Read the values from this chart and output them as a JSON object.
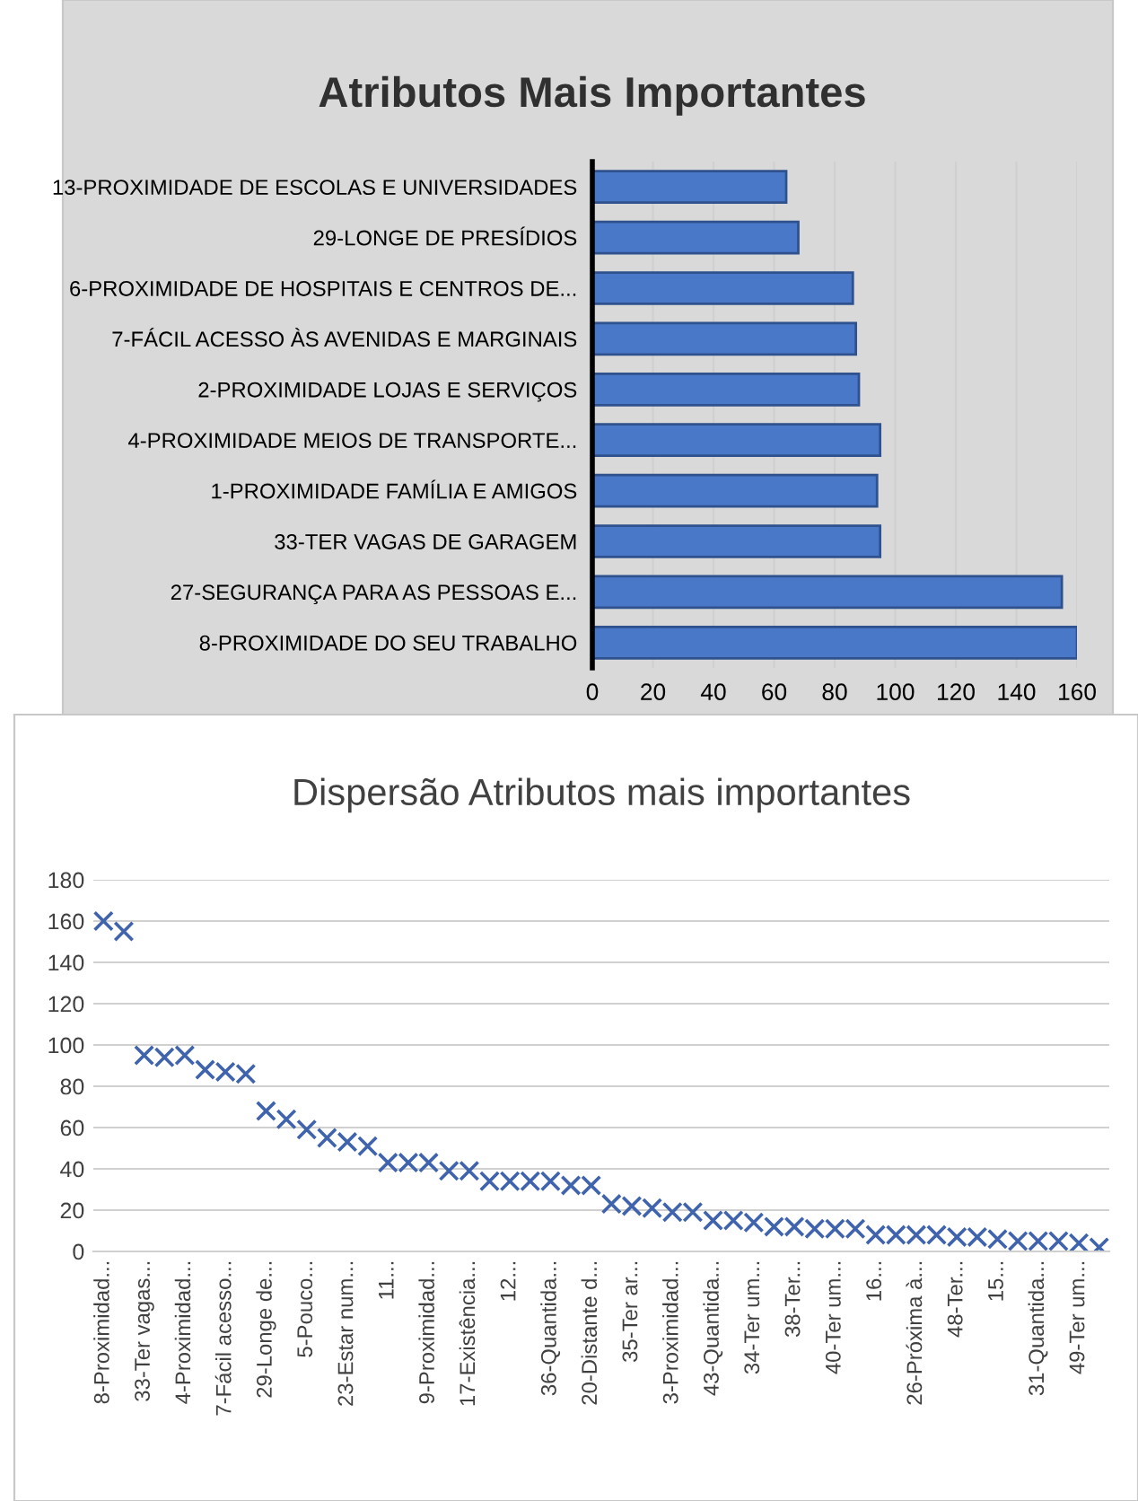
{
  "chart_data": [
    {
      "type": "bar",
      "orientation": "horizontal",
      "title": "Atributos Mais Importantes",
      "categories": [
        "13-PROXIMIDADE DE ESCOLAS E UNIVERSIDADES",
        "29-LONGE DE PRESÍDIOS",
        "6-PROXIMIDADE DE HOSPITAIS E CENTROS DE...",
        "7-FÁCIL ACESSO ÀS AVENIDAS E MARGINAIS",
        "2-PROXIMIDADE LOJAS E SERVIÇOS",
        "4-PROXIMIDADE MEIOS DE TRANSPORTE...",
        "1-PROXIMIDADE FAMÍLIA E AMIGOS",
        "33-TER VAGAS DE GARAGEM",
        "27-SEGURANÇA PARA AS PESSOAS E...",
        "8-PROXIMIDADE DO SEU TRABALHO"
      ],
      "values": [
        64,
        68,
        86,
        87,
        88,
        95,
        94,
        95,
        155,
        160
      ],
      "color": "#4a78c8",
      "xlim": [
        0,
        160
      ],
      "xticks": [
        0,
        20,
        40,
        60,
        80,
        100,
        120,
        140,
        160
      ],
      "grid": "x"
    },
    {
      "type": "scatter",
      "title": "Dispersão Atributos mais importantes",
      "categories": [
        "8-Proximidad...",
        null,
        "33-Ter vagas...",
        null,
        "4-Proximidad...",
        null,
        "7-Fácil acesso...",
        null,
        "29-Longe de...",
        null,
        "5-Pouco...",
        null,
        "23-Estar num...",
        null,
        "11...",
        null,
        "9-Proximidad...",
        null,
        "17-Existência...",
        null,
        "12...",
        null,
        "36-Quantida...",
        null,
        "20-Distante d...",
        null,
        "35-Ter ar...",
        null,
        "3-Proximidad...",
        null,
        "43-Quantida...",
        null,
        "34-Ter um...",
        null,
        "38-Ter...",
        null,
        "40-Ter um...",
        null,
        "16...",
        null,
        "26-Próxima à...",
        null,
        "48-Ter...",
        null,
        "15...",
        null,
        "31-Quantida...",
        null,
        "49-Ter um...",
        null
      ],
      "values": [
        160,
        155,
        95,
        94,
        95,
        88,
        87,
        86,
        68,
        64,
        59,
        55,
        53,
        51,
        43,
        43,
        43,
        39,
        39,
        34,
        34,
        34,
        34,
        32,
        32,
        23,
        22,
        21,
        19,
        19,
        15,
        15,
        14,
        12,
        12,
        11,
        11,
        11,
        8,
        8,
        8,
        8,
        7,
        7,
        6,
        5,
        5,
        5,
        4,
        2
      ],
      "color": "#3f64ad",
      "marker": "cross",
      "ylim": [
        0,
        180
      ],
      "yticks": [
        0,
        20,
        40,
        60,
        80,
        100,
        120,
        140,
        160,
        180
      ],
      "grid": "y"
    }
  ]
}
